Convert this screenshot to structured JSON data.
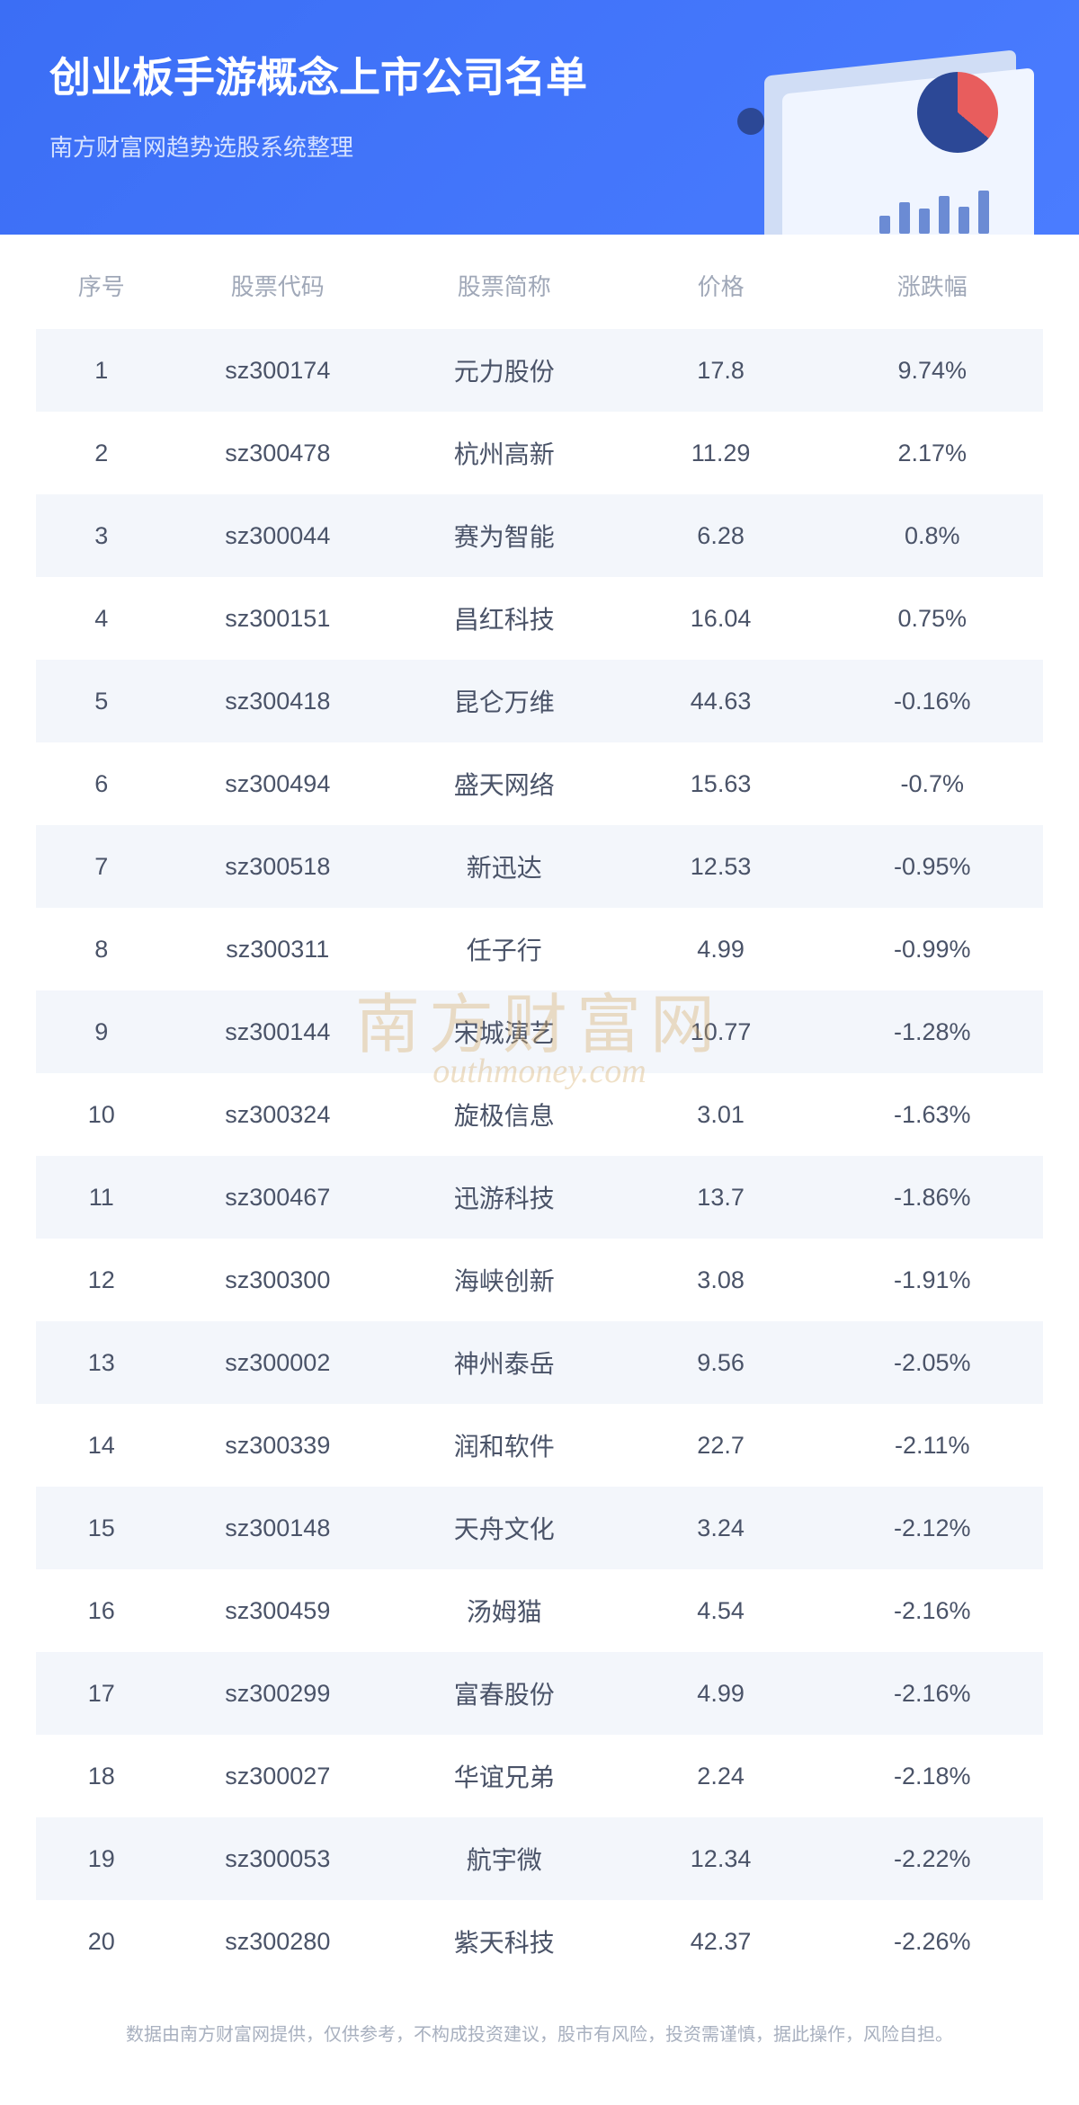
{
  "header": {
    "title": "创业板手游概念上市公司名单",
    "subtitle": "南方财富网趋势选股系统整理",
    "bg_gradient_start": "#3b6ef5",
    "bg_gradient_end": "#4a7cff",
    "title_color": "#ffffff",
    "subtitle_color": "#d6e2ff",
    "title_fontsize": 46,
    "subtitle_fontsize": 26
  },
  "graphic": {
    "pie_slice1_color": "#e85d5d",
    "pie_slice2_color": "#2c4896",
    "paper_back_color": "#d0ddf5",
    "paper_front_color": "#f0f5ff",
    "bar_color": "#6b8bd4",
    "globe_color": "#2c4896"
  },
  "table": {
    "header_color": "#a0a8b8",
    "row_text_color": "#4a5368",
    "row_alt_bg": "#f3f6fb",
    "header_fontsize": 26,
    "row_fontsize": 27,
    "columns": [
      "序号",
      "股票代码",
      "股票简称",
      "价格",
      "涨跌幅"
    ],
    "rows": [
      {
        "idx": "1",
        "code": "sz300174",
        "name": "元力股份",
        "price": "17.8",
        "change": "9.74%"
      },
      {
        "idx": "2",
        "code": "sz300478",
        "name": "杭州高新",
        "price": "11.29",
        "change": "2.17%"
      },
      {
        "idx": "3",
        "code": "sz300044",
        "name": "赛为智能",
        "price": "6.28",
        "change": "0.8%"
      },
      {
        "idx": "4",
        "code": "sz300151",
        "name": "昌红科技",
        "price": "16.04",
        "change": "0.75%"
      },
      {
        "idx": "5",
        "code": "sz300418",
        "name": "昆仑万维",
        "price": "44.63",
        "change": "-0.16%"
      },
      {
        "idx": "6",
        "code": "sz300494",
        "name": "盛天网络",
        "price": "15.63",
        "change": "-0.7%"
      },
      {
        "idx": "7",
        "code": "sz300518",
        "name": "新迅达",
        "price": "12.53",
        "change": "-0.95%"
      },
      {
        "idx": "8",
        "code": "sz300311",
        "name": "任子行",
        "price": "4.99",
        "change": "-0.99%"
      },
      {
        "idx": "9",
        "code": "sz300144",
        "name": "宋城演艺",
        "price": "10.77",
        "change": "-1.28%"
      },
      {
        "idx": "10",
        "code": "sz300324",
        "name": "旋极信息",
        "price": "3.01",
        "change": "-1.63%"
      },
      {
        "idx": "11",
        "code": "sz300467",
        "name": "迅游科技",
        "price": "13.7",
        "change": "-1.86%"
      },
      {
        "idx": "12",
        "code": "sz300300",
        "name": "海峡创新",
        "price": "3.08",
        "change": "-1.91%"
      },
      {
        "idx": "13",
        "code": "sz300002",
        "name": "神州泰岳",
        "price": "9.56",
        "change": "-2.05%"
      },
      {
        "idx": "14",
        "code": "sz300339",
        "name": "润和软件",
        "price": "22.7",
        "change": "-2.11%"
      },
      {
        "idx": "15",
        "code": "sz300148",
        "name": "天舟文化",
        "price": "3.24",
        "change": "-2.12%"
      },
      {
        "idx": "16",
        "code": "sz300459",
        "name": "汤姆猫",
        "price": "4.54",
        "change": "-2.16%"
      },
      {
        "idx": "17",
        "code": "sz300299",
        "name": "富春股份",
        "price": "4.99",
        "change": "-2.16%"
      },
      {
        "idx": "18",
        "code": "sz300027",
        "name": "华谊兄弟",
        "price": "2.24",
        "change": "-2.18%"
      },
      {
        "idx": "19",
        "code": "sz300053",
        "name": "航宇微",
        "price": "12.34",
        "change": "-2.22%"
      },
      {
        "idx": "20",
        "code": "sz300280",
        "name": "紫天科技",
        "price": "42.37",
        "change": "-2.26%"
      }
    ]
  },
  "watermark": {
    "cn": "南方财富网",
    "en": "outhmoney.com",
    "color": "#d4a860"
  },
  "footer": {
    "text": "数据由南方财富网提供，仅供参考，不构成投资建议，股市有风险，投资需谨慎，据此操作，风险自担。",
    "color": "#a8b0bf",
    "fontsize": 20
  }
}
